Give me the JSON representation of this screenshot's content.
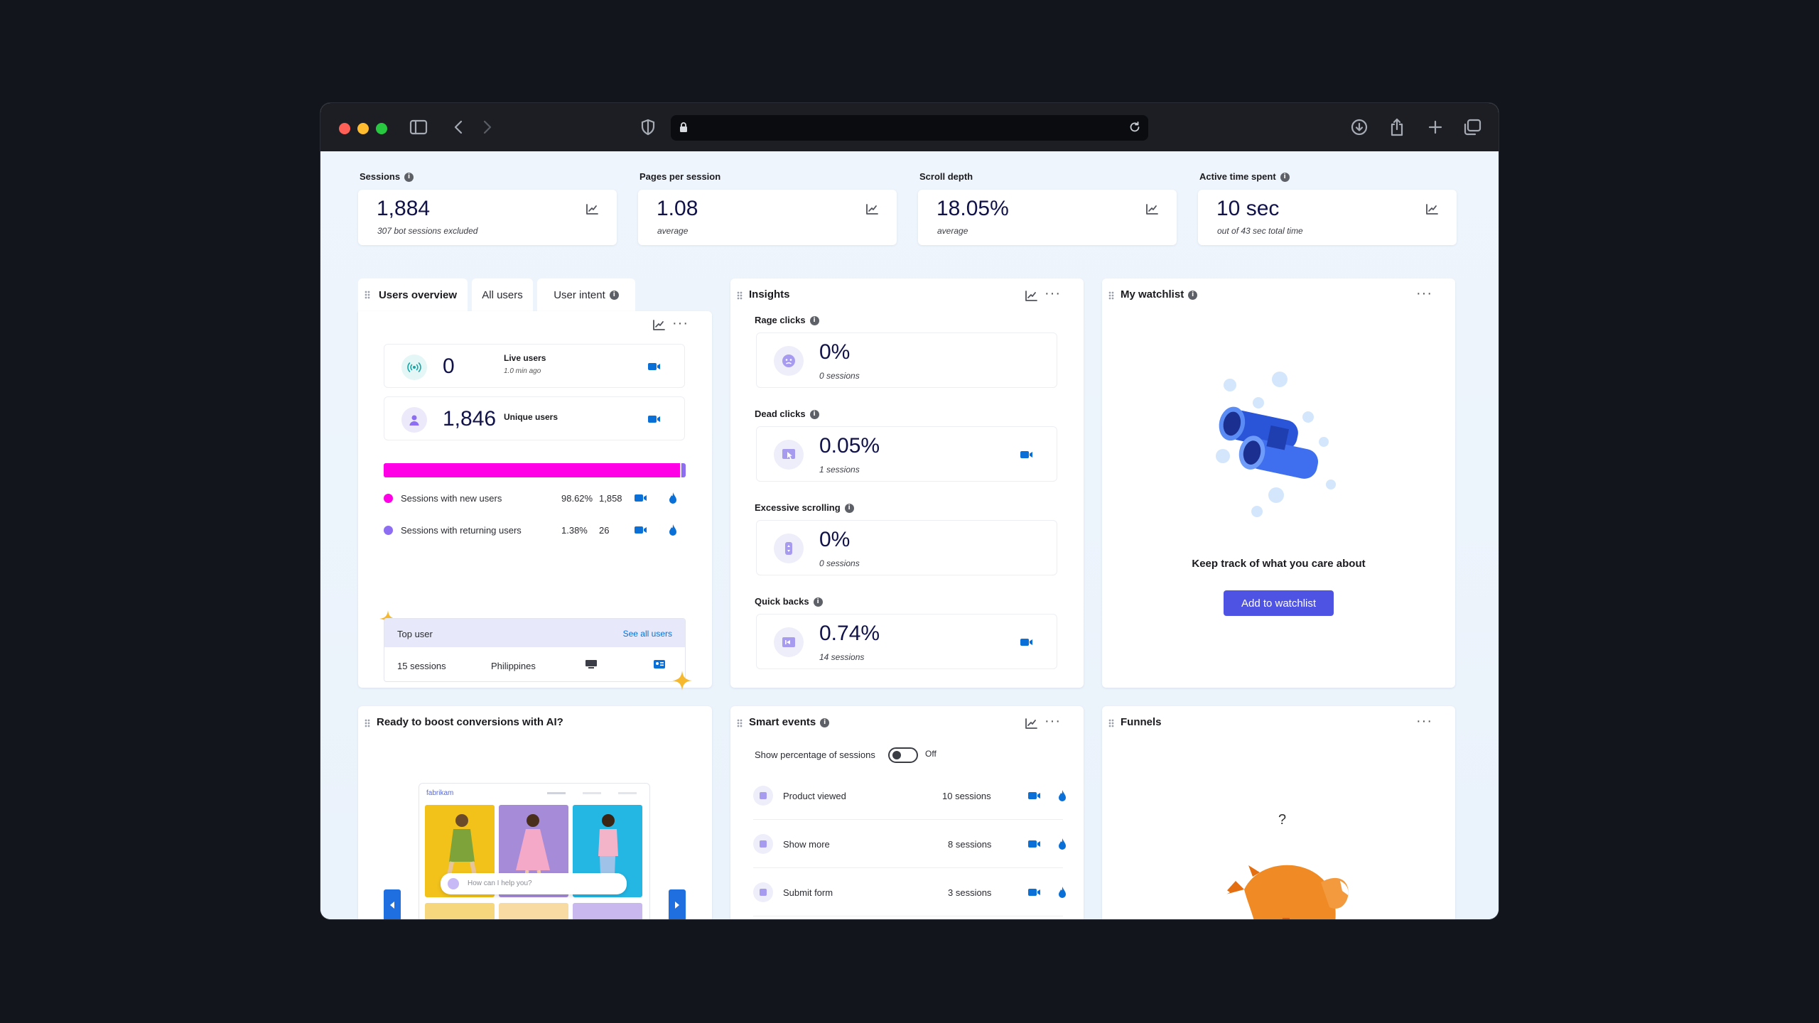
{
  "metrics": [
    {
      "label": "Sessions",
      "info": true,
      "value": "1,884",
      "sub": "307 bot sessions excluded"
    },
    {
      "label": "Pages per session",
      "info": false,
      "value": "1.08",
      "sub": "average"
    },
    {
      "label": "Scroll depth",
      "info": false,
      "value": "18.05%",
      "sub": "average"
    },
    {
      "label": "Active time spent",
      "info": true,
      "value": "10 sec",
      "sub": "out of 43 sec total time"
    }
  ],
  "users": {
    "tabs": [
      "Users overview",
      "All users",
      "User intent"
    ],
    "live_value": "0",
    "live_label": "Live users",
    "live_sub": "1.0 min ago",
    "unique_value": "1,846",
    "unique_label": "Unique users",
    "new_fraction": 0.9862,
    "new_label": "Sessions with new users",
    "new_pct": "98.62%",
    "new_count": "1,858",
    "ret_label": "Sessions with returning users",
    "ret_pct": "1.38%",
    "ret_count": "26",
    "top_user_label": "Top user",
    "see_all": "See all users",
    "top_sessions": "15 sessions",
    "top_country": "Philippines",
    "colors": {
      "new": "#ff00e6",
      "returning": "#8d6df2",
      "accent": "#0a6fd6"
    }
  },
  "insights": {
    "title": "Insights",
    "items": [
      {
        "label": "Rage clicks",
        "value": "0%",
        "sub": "0 sessions",
        "icon": "angry-face-icon",
        "rec": false
      },
      {
        "label": "Dead clicks",
        "value": "0.05%",
        "sub": "1 sessions",
        "icon": "cursor-icon",
        "rec": true
      },
      {
        "label": "Excessive scrolling",
        "value": "0%",
        "sub": "0 sessions",
        "icon": "scroll-icon",
        "rec": false
      },
      {
        "label": "Quick backs",
        "value": "0.74%",
        "sub": "14 sessions",
        "icon": "back-icon",
        "rec": true
      }
    ]
  },
  "watchlist": {
    "title": "My watchlist",
    "message": "Keep track of what you care about",
    "button": "Add to watchlist"
  },
  "ai": {
    "title": "Ready to boost conversions with AI?",
    "brand": "fabrikam",
    "chat_placeholder": "How can I help you?"
  },
  "smart_events": {
    "title": "Smart events",
    "toggle_label": "Show percentage of sessions",
    "toggle_state": "Off",
    "rows": [
      {
        "name": "Product viewed",
        "sessions": "10 sessions"
      },
      {
        "name": "Show more",
        "sessions": "8 sessions"
      },
      {
        "name": "Submit form",
        "sessions": "3 sessions"
      }
    ]
  },
  "funnels": {
    "title": "Funnels",
    "question": "?"
  }
}
